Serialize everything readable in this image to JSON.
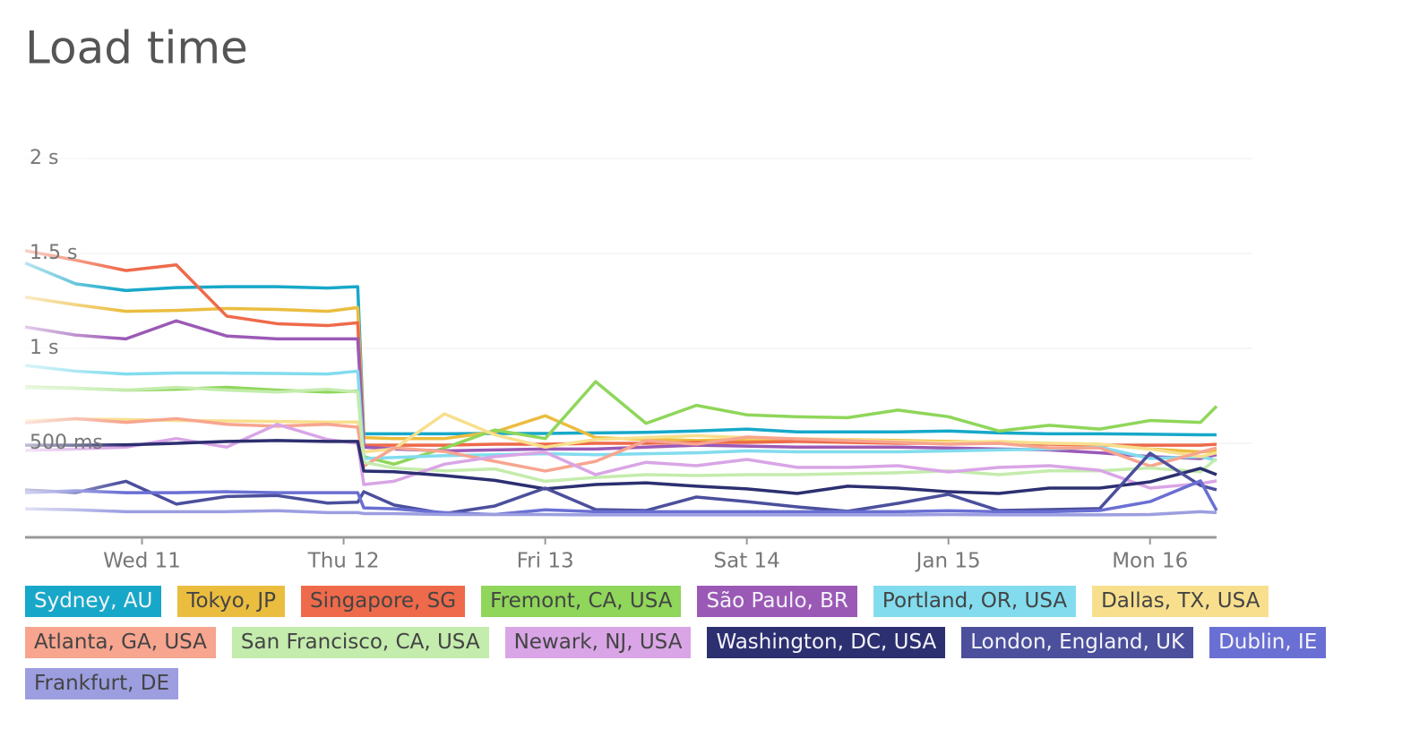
{
  "chart_data": {
    "type": "line",
    "title": "Load time",
    "x": [
      10.42,
      10.67,
      10.92,
      11.17,
      11.42,
      11.67,
      11.92,
      12.07,
      12.1,
      12.25,
      12.5,
      12.75,
      13,
      13.25,
      13.5,
      13.75,
      14,
      14.25,
      14.5,
      14.75,
      15,
      15.25,
      15.5,
      15.75,
      16,
      16.25,
      16.33
    ],
    "xlim": [
      10.42,
      16.33
    ],
    "xticks": [
      {
        "value": 11,
        "label": "Wed 11"
      },
      {
        "value": 12,
        "label": "Thu 12"
      },
      {
        "value": 13,
        "label": "Fri 13"
      },
      {
        "value": 14,
        "label": "Sat 14"
      },
      {
        "value": 15,
        "label": "Jan 15"
      },
      {
        "value": 16,
        "label": "Mon 16"
      }
    ],
    "ylim": [
      0,
      2000
    ],
    "yticks": [
      {
        "value": 500,
        "label": "500 ms"
      },
      {
        "value": 1000,
        "label": "1 s"
      },
      {
        "value": 1500,
        "label": "1.5 s"
      },
      {
        "value": 2000,
        "label": "2 s"
      }
    ],
    "grid": true,
    "series": [
      {
        "name": "Sydney, AU",
        "color": "#17a8c9",
        "values": [
          1450,
          1340,
          1305,
          1320,
          1325,
          1325,
          1318,
          1325,
          550,
          550,
          550,
          552,
          552,
          555,
          558,
          565,
          575,
          560,
          560,
          560,
          565,
          555,
          550,
          550,
          548,
          545,
          545
        ]
      },
      {
        "name": "Tokyo, JP",
        "color": "#ebbd3f",
        "values": [
          1270,
          1230,
          1195,
          1200,
          1210,
          1205,
          1195,
          1215,
          530,
          525,
          525,
          560,
          645,
          530,
          520,
          515,
          520,
          515,
          520,
          515,
          510,
          505,
          500,
          495,
          470,
          455,
          460
        ]
      },
      {
        "name": "Singapore, SG",
        "color": "#ee6a4a",
        "values": [
          1515,
          1465,
          1410,
          1440,
          1170,
          1130,
          1120,
          1135,
          490,
          490,
          490,
          495,
          495,
          500,
          500,
          505,
          505,
          510,
          505,
          500,
          500,
          500,
          495,
          490,
          490,
          490,
          495
        ]
      },
      {
        "name": "Fremont, CA, USA",
        "color": "#8fd65a",
        "values": [
          797,
          790,
          780,
          785,
          795,
          780,
          770,
          775,
          430,
          390,
          475,
          570,
          525,
          825,
          605,
          700,
          650,
          640,
          635,
          675,
          640,
          565,
          595,
          575,
          620,
          610,
          695
        ]
      },
      {
        "name": "São Paulo, BR",
        "color": "#9b59b6",
        "values": [
          1113,
          1070,
          1050,
          1145,
          1065,
          1050,
          1050,
          1050,
          480,
          470,
          460,
          465,
          470,
          470,
          480,
          490,
          485,
          480,
          480,
          480,
          475,
          470,
          465,
          450,
          430,
          420,
          440
        ]
      },
      {
        "name": "Portland, OR, USA",
        "color": "#82dcee",
        "values": [
          910,
          880,
          865,
          870,
          870,
          868,
          865,
          880,
          420,
          425,
          435,
          440,
          445,
          440,
          445,
          450,
          460,
          455,
          455,
          455,
          460,
          465,
          470,
          480,
          420,
          430,
          410
        ]
      },
      {
        "name": "Dallas, TX, USA",
        "color": "#f8df8e",
        "values": [
          618,
          628,
          625,
          620,
          618,
          615,
          612,
          612,
          455,
          470,
          655,
          545,
          480,
          520,
          530,
          540,
          530,
          525,
          520,
          510,
          505,
          510,
          500,
          495,
          470,
          430,
          450
        ]
      },
      {
        "name": "Atlanta, GA, USA",
        "color": "#f7a58f",
        "values": [
          608,
          630,
          610,
          630,
          600,
          590,
          600,
          585,
          380,
          476,
          457,
          405,
          354,
          405,
          514,
          495,
          533,
          523,
          514,
          505,
          495,
          500,
          476,
          476,
          380,
          453,
          476
        ]
      },
      {
        "name": "San Francisco, CA, USA",
        "color": "#c4ecad",
        "values": [
          792,
          790,
          780,
          795,
          780,
          770,
          785,
          770,
          400,
          370,
          355,
          365,
          300,
          320,
          335,
          330,
          335,
          335,
          340,
          345,
          355,
          335,
          355,
          355,
          370,
          350,
          420
        ]
      },
      {
        "name": "Newark, NJ, USA",
        "color": "#d9a5e6",
        "values": [
          462,
          470,
          480,
          525,
          480,
          600,
          520,
          500,
          283,
          300,
          390,
          430,
          453,
          335,
          400,
          382,
          415,
          373,
          373,
          382,
          349,
          373,
          382,
          358,
          264,
          288,
          302
        ]
      },
      {
        "name": "Washington, DC, USA",
        "color": "#2c2f70",
        "values": [
          490,
          490,
          492,
          500,
          510,
          515,
          510,
          510,
          354,
          350,
          330,
          305,
          260,
          283,
          292,
          274,
          260,
          236,
          274,
          264,
          245,
          236,
          264,
          264,
          297,
          368,
          335
        ]
      },
      {
        "name": "London, England, UK",
        "color": "#4b4f9c",
        "values": [
          255,
          240,
          300,
          180,
          220,
          225,
          185,
          190,
          245,
          175,
          130,
          170,
          264,
          151,
          146,
          217,
          193,
          165,
          142,
          184,
          231,
          146,
          151,
          156,
          448,
          278,
          255
        ]
      },
      {
        "name": "Dublin, IE",
        "color": "#6a6fd3",
        "values": [
          240,
          250,
          240,
          240,
          245,
          240,
          240,
          240,
          160,
          155,
          135,
          125,
          150,
          140,
          140,
          140,
          140,
          140,
          140,
          140,
          145,
          140,
          140,
          146,
          193,
          302,
          146
        ]
      },
      {
        "name": "Frankfurt, DE",
        "color": "#9c9ee0",
        "values": [
          155,
          150,
          140,
          140,
          140,
          145,
          135,
          135,
          130,
          130,
          125,
          125,
          125,
          123,
          123,
          123,
          123,
          123,
          123,
          123,
          125,
          123,
          123,
          123,
          125,
          140,
          135
        ]
      }
    ]
  }
}
